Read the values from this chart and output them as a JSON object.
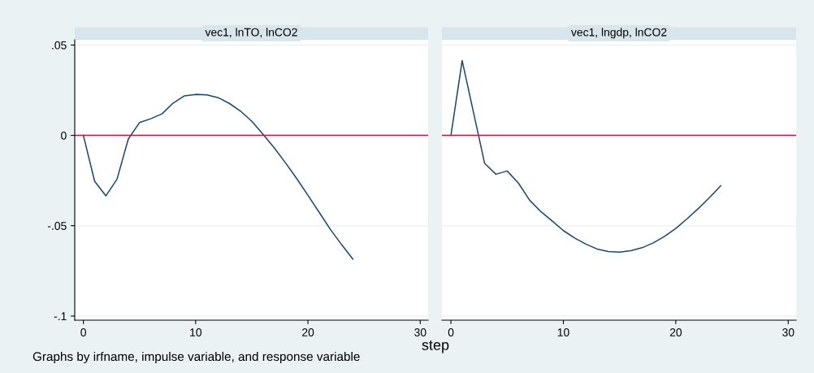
{
  "chart_data": [
    {
      "type": "line",
      "title": "vec1, lnTO, lnCO2",
      "xlabel": "step",
      "annotations": [
        "Graphs by irfname, impulse variable, and response variable"
      ],
      "x": [
        0,
        1,
        2,
        3,
        4,
        5,
        6,
        7,
        8,
        9,
        10,
        11,
        12,
        13,
        14,
        15,
        16,
        17,
        18,
        19,
        20,
        21,
        22,
        23,
        24
      ],
      "series": [
        {
          "color": "#1a476f",
          "values": [
            0,
            -0.0254,
            -0.0335,
            -0.0242,
            -0.002,
            0.0071,
            0.0092,
            0.0119,
            0.0179,
            0.0219,
            0.0227,
            0.0224,
            0.0209,
            0.0177,
            0.0134,
            0.0078,
            0.0006,
            -0.0069,
            -0.0152,
            -0.0239,
            -0.0332,
            -0.0426,
            -0.0521,
            -0.0605,
            -0.0685
          ]
        }
      ],
      "xlim": [
        -0.77,
        30.7
      ],
      "ylim": [
        -0.1023,
        0.0529
      ],
      "xticks": [
        0,
        10,
        20,
        30
      ],
      "yticks": [
        {
          "value": 0.05,
          "label": ".05"
        },
        0,
        {
          "value": -0.05,
          "label": "-.05"
        },
        {
          "value": -0.1,
          "label": "-.1"
        }
      ],
      "ref_lines": [
        {
          "axis": "y",
          "value": 0,
          "color": "#d0103a"
        }
      ],
      "grid": "y"
    },
    {
      "type": "line",
      "title": "vec1, lngdp, lnCO2",
      "x": [
        0,
        1,
        2,
        3,
        4,
        5,
        6,
        7,
        8,
        9,
        10,
        11,
        12,
        13,
        14,
        15,
        16,
        17,
        18,
        19,
        20,
        21,
        22,
        23,
        24
      ],
      "series": [
        {
          "color": "#1a476f",
          "values": [
            0,
            0.0414,
            0.0129,
            -0.0155,
            -0.0215,
            -0.0197,
            -0.0264,
            -0.0359,
            -0.0422,
            -0.0474,
            -0.0527,
            -0.0568,
            -0.0602,
            -0.0629,
            -0.0643,
            -0.0646,
            -0.0638,
            -0.0622,
            -0.0595,
            -0.0559,
            -0.0515,
            -0.0462,
            -0.0405,
            -0.0344,
            -0.0279
          ]
        }
      ],
      "xlim": [
        -0.8,
        30.7
      ],
      "ylim": [
        -0.1023,
        0.0529
      ],
      "xticks": [
        0,
        10,
        20,
        30
      ],
      "yticks": [
        {
          "value": 0.05,
          "label": null
        },
        {
          "value": 0,
          "label": null
        },
        {
          "value": -0.05,
          "label": null
        },
        {
          "value": -0.1,
          "label": null
        }
      ],
      "ref_lines": [
        {
          "axis": "y",
          "value": 0,
          "color": "#d0103a"
        }
      ],
      "grid": "y",
      "tick_labels": "x"
    }
  ]
}
